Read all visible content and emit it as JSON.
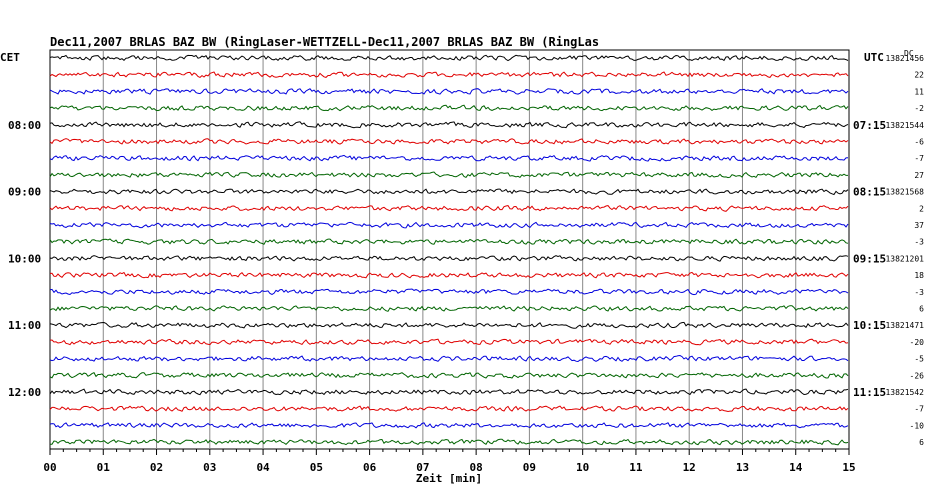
{
  "chart_data": {
    "type": "line",
    "title": "Dec11,2007   BRLAS BAZ BW (RingLaser-WETTZELL-Dec11,2007   BRLAS BAZ BW (RingLas",
    "left_timezone": "CET",
    "right_timezone": "UTC",
    "offset_header": "DC",
    "xlabel": "Zeit [min]",
    "xlim": [
      0,
      15
    ],
    "x_ticks": [
      "00",
      "01",
      "02",
      "03",
      "04",
      "05",
      "06",
      "07",
      "08",
      "09",
      "10",
      "11",
      "12",
      "13",
      "14",
      "15"
    ],
    "trace_colors": [
      "#000000",
      "#e00000",
      "#0000dd",
      "#006400"
    ],
    "traces_per_hour": 4,
    "rows_total": 24,
    "hour_blocks": [
      {
        "left_label": "",
        "right_label": "",
        "offsets": [
          "13821456",
          "22",
          "11",
          "-2"
        ]
      },
      {
        "left_label": "08:00",
        "right_label": "07:15",
        "offsets": [
          "13821544",
          "-6",
          "-7",
          "27"
        ]
      },
      {
        "left_label": "09:00",
        "right_label": "08:15",
        "offsets": [
          "13821568",
          "2",
          "37",
          "-3"
        ]
      },
      {
        "left_label": "10:00",
        "right_label": "09:15",
        "offsets": [
          "13821201",
          "18",
          "-3",
          "6"
        ]
      },
      {
        "left_label": "11:00",
        "right_label": "10:15",
        "offsets": [
          "13821471",
          "-20",
          "-5",
          "-26"
        ]
      },
      {
        "left_label": "12:00",
        "right_label": "11:15",
        "offsets": [
          "13821542",
          "-7",
          "-10",
          "6"
        ]
      }
    ],
    "grid_vertical": true
  }
}
